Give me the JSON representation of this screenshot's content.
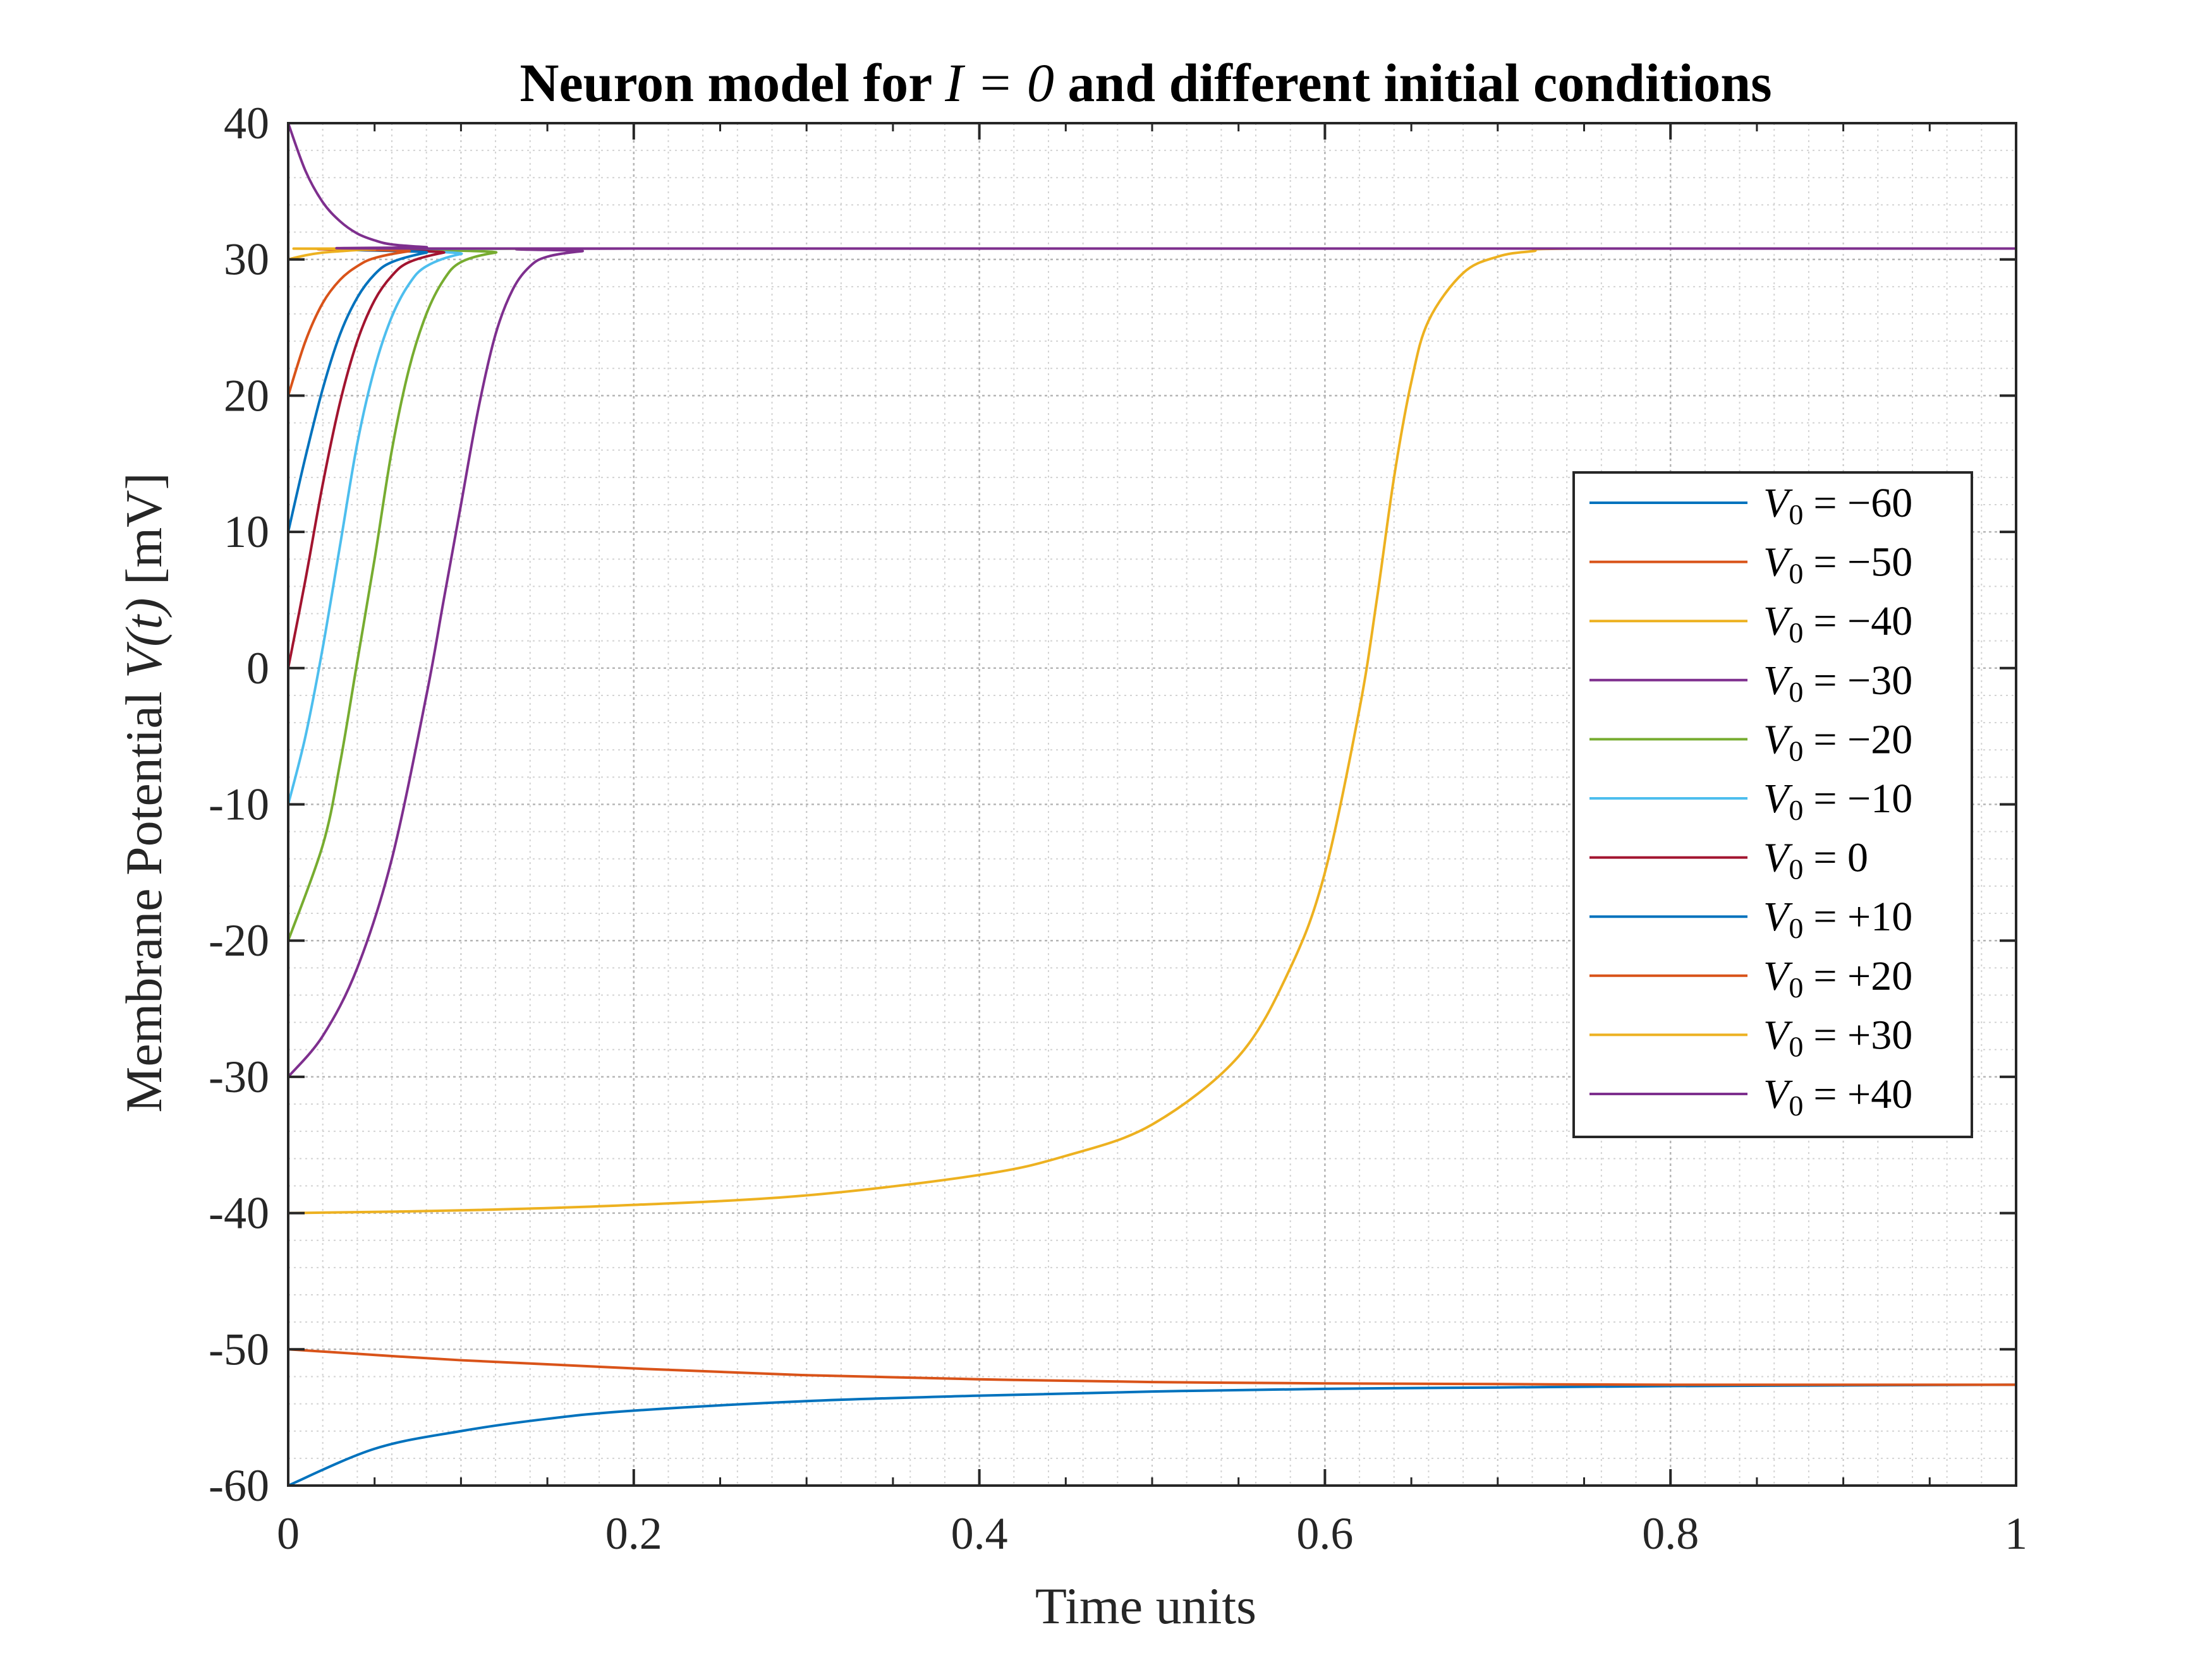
{
  "chart_data": {
    "type": "line",
    "title_prefix": "Neuron model for ",
    "title_math": "I = 0",
    "title_suffix": " and different initial conditions",
    "xlabel": "Time units",
    "ylabel_prefix": "Membrane Potential ",
    "ylabel_math": "V(t)",
    "ylabel_suffix": " [mV]",
    "xlim": [
      0,
      1
    ],
    "ylim": [
      -60,
      40
    ],
    "x_ticks": [
      0,
      0.2,
      0.4,
      0.6,
      0.8,
      1
    ],
    "x_tick_labels": [
      "0",
      "0.2",
      "0.4",
      "0.6",
      "0.8",
      "1"
    ],
    "y_ticks": [
      40,
      30,
      20,
      10,
      0,
      -10,
      -20,
      -30,
      -40,
      -50,
      -60
    ],
    "y_tick_labels": [
      "40",
      "30",
      "20",
      "10",
      "0",
      "-10",
      "-20",
      "-30",
      "-40",
      "-50",
      "-60"
    ],
    "grid": true,
    "minor_grid": true,
    "legend_position": "right",
    "series": [
      {
        "name": "V0 = −60",
        "legend_var": "V",
        "legend_sub": "0",
        "legend_rhs": "= −60",
        "color": "#0072BD",
        "x": [
          0,
          0.05,
          0.1,
          0.15,
          0.2,
          0.3,
          0.4,
          0.5,
          0.6,
          0.7,
          0.8,
          1.0
        ],
        "y": [
          -60,
          -57.3,
          -56.0,
          -55.1,
          -54.5,
          -53.8,
          -53.4,
          -53.1,
          -52.9,
          -52.8,
          -52.7,
          -52.6
        ]
      },
      {
        "name": "V0 = −50",
        "legend_var": "V",
        "legend_sub": "0",
        "legend_rhs": "= −50",
        "color": "#D95319",
        "x": [
          0,
          0.1,
          0.2,
          0.3,
          0.4,
          0.5,
          0.6,
          0.7,
          0.8,
          1.0
        ],
        "y": [
          -50,
          -50.8,
          -51.4,
          -51.9,
          -52.2,
          -52.4,
          -52.5,
          -52.55,
          -52.6,
          -52.6
        ]
      },
      {
        "name": "V0 = −40",
        "legend_var": "V",
        "legend_sub": "0",
        "legend_rhs": "= −40",
        "color": "#EDB120",
        "x": [
          0,
          0.1,
          0.2,
          0.3,
          0.4,
          0.45,
          0.5,
          0.55,
          0.58,
          0.6,
          0.62,
          0.63,
          0.64,
          0.65,
          0.66,
          0.68,
          0.7,
          0.72,
          0.75,
          1.0
        ],
        "y": [
          -40,
          -39.8,
          -39.4,
          -38.7,
          -37.2,
          -35.8,
          -33.5,
          -28.5,
          -22.0,
          -15.0,
          -3.0,
          5.0,
          14.0,
          21.0,
          25.5,
          29.0,
          30.2,
          30.6,
          30.8,
          30.8
        ]
      },
      {
        "name": "V0 = −30",
        "legend_var": "V",
        "legend_sub": "0",
        "legend_rhs": "= −30",
        "color": "#7E2F8E",
        "x": [
          0,
          0.02,
          0.04,
          0.06,
          0.08,
          0.09,
          0.1,
          0.11,
          0.12,
          0.13,
          0.14,
          0.15,
          0.17,
          0.2,
          1.0
        ],
        "y": [
          -30,
          -27.0,
          -22.0,
          -14.0,
          -2.0,
          5.0,
          12.0,
          19.0,
          24.5,
          27.8,
          29.5,
          30.2,
          30.6,
          30.8,
          30.8
        ]
      },
      {
        "name": "V0 = −20",
        "legend_var": "V",
        "legend_sub": "0",
        "legend_rhs": "= −20",
        "color": "#77AC30",
        "x": [
          0,
          0.02,
          0.03,
          0.04,
          0.05,
          0.06,
          0.07,
          0.08,
          0.09,
          0.1,
          0.12,
          0.15,
          1.0
        ],
        "y": [
          -20,
          -13.0,
          -7.0,
          0.5,
          8.0,
          16.0,
          22.0,
          26.0,
          28.5,
          29.8,
          30.5,
          30.8,
          30.8
        ]
      },
      {
        "name": "V0 = −10",
        "legend_var": "V",
        "legend_sub": "0",
        "legend_rhs": "= −10",
        "color": "#4DBEEE",
        "x": [
          0,
          0.01,
          0.02,
          0.03,
          0.04,
          0.05,
          0.06,
          0.07,
          0.08,
          0.1,
          0.13,
          1.0
        ],
        "y": [
          -10,
          -5.0,
          1.5,
          9.0,
          16.5,
          22.0,
          25.8,
          28.2,
          29.5,
          30.4,
          30.8,
          30.8
        ]
      },
      {
        "name": "V0 = 0",
        "legend_var": "V",
        "legend_sub": "0",
        "legend_rhs": "= 0",
        "color": "#A2142F",
        "x": [
          0,
          0.01,
          0.02,
          0.03,
          0.04,
          0.05,
          0.06,
          0.07,
          0.09,
          0.11,
          1.0
        ],
        "y": [
          0,
          6.5,
          13.5,
          19.5,
          24.0,
          27.0,
          28.8,
          29.8,
          30.5,
          30.8,
          30.8
        ]
      },
      {
        "name": "V0 = +10",
        "legend_var": "V",
        "legend_sub": "0",
        "legend_rhs": "= +10",
        "color": "#0072BD",
        "x": [
          0,
          0.01,
          0.02,
          0.03,
          0.04,
          0.05,
          0.06,
          0.08,
          0.1,
          1.0
        ],
        "y": [
          10,
          15.5,
          20.5,
          24.5,
          27.2,
          28.9,
          29.8,
          30.5,
          30.8,
          30.8
        ]
      },
      {
        "name": "V0 = +20",
        "legend_var": "V",
        "legend_sub": "0",
        "legend_rhs": "= +20",
        "color": "#D95319",
        "x": [
          0,
          0.01,
          0.02,
          0.03,
          0.04,
          0.05,
          0.07,
          0.09,
          1.0
        ],
        "y": [
          20,
          24.0,
          26.8,
          28.5,
          29.5,
          30.1,
          30.6,
          30.8,
          30.8
        ]
      },
      {
        "name": "V0 = +30",
        "legend_var": "V",
        "legend_sub": "0",
        "legend_rhs": "= +30",
        "color": "#EDB120",
        "x": [
          0,
          0.01,
          0.02,
          0.03,
          0.05,
          0.08,
          1.0
        ],
        "y": [
          30,
          30.3,
          30.5,
          30.6,
          30.75,
          30.8,
          30.8
        ]
      },
      {
        "name": "V0 = +40",
        "legend_var": "V",
        "legend_sub": "0",
        "legend_rhs": "= +40",
        "color": "#7E2F8E",
        "x": [
          0,
          0.01,
          0.02,
          0.03,
          0.04,
          0.05,
          0.06,
          0.08,
          0.1,
          1.0
        ],
        "y": [
          40,
          36.5,
          34.2,
          32.8,
          31.9,
          31.4,
          31.1,
          30.9,
          30.8,
          30.8
        ]
      }
    ]
  }
}
